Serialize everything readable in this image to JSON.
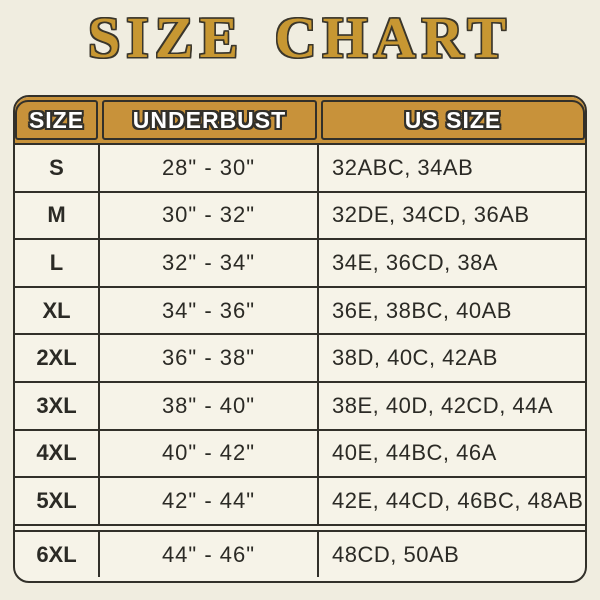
{
  "title": "SIZE CHART",
  "colors": {
    "page_bg": "#f0ede0",
    "cell_bg": "#f6f3e8",
    "header_bg": "#c8923a",
    "header_text": "#ffffff",
    "border": "#32302a",
    "body_text": "#2b2a25",
    "title_gold": "#c79732",
    "title_outline": "#3a362b"
  },
  "chart_data": {
    "type": "table",
    "title": "SIZE CHART",
    "columns": [
      "SIZE",
      "UNDERBUST",
      "US SIZE"
    ],
    "rows": [
      {
        "size": "S",
        "underbust": "28\" - 30\"",
        "us_size": "32ABC, 34AB"
      },
      {
        "size": "M",
        "underbust": "30\" - 32\"",
        "us_size": "32DE, 34CD, 36AB"
      },
      {
        "size": "L",
        "underbust": "32\" - 34\"",
        "us_size": "34E, 36CD, 38A"
      },
      {
        "size": "XL",
        "underbust": "34\" - 36\"",
        "us_size": "36E, 38BC, 40AB"
      },
      {
        "size": "2XL",
        "underbust": "36\" - 38\"",
        "us_size": "38D, 40C, 42AB"
      },
      {
        "size": "3XL",
        "underbust": "38\" - 40\"",
        "us_size": "38E, 40D, 42CD, 44A"
      },
      {
        "size": "4XL",
        "underbust": "40\" - 42\"",
        "us_size": "40E, 44BC, 46A"
      },
      {
        "size": "5XL",
        "underbust": "42\" - 44\"",
        "us_size": "42E, 44CD, 46BC, 48AB"
      },
      {
        "size": "6XL",
        "underbust": "44\" - 46\"",
        "us_size": "48CD, 50AB"
      }
    ]
  }
}
